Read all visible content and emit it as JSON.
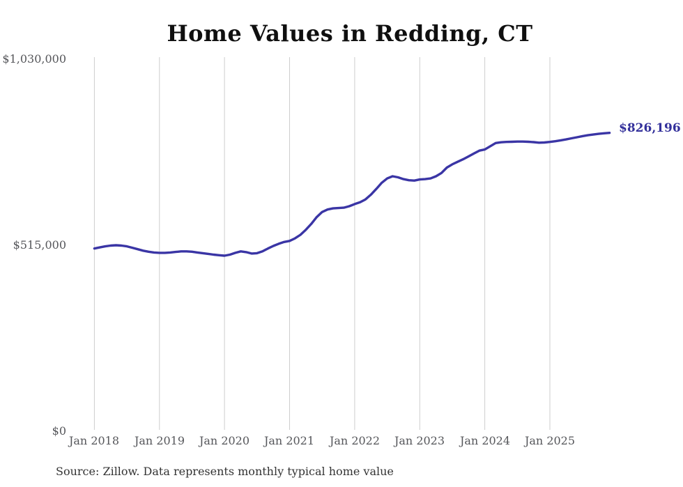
{
  "title": "Home Values in Redding, CT",
  "source_note": "Source: Zillow. Data represents monthly typical home value",
  "annotations": {
    "end_value_label": "$826,196"
  },
  "colors": {
    "line": "#3a35a5",
    "end_label": "#33309b",
    "grid": "#cdcdcd",
    "axis_text": "#55565a",
    "title_text": "#0f0f0f",
    "source_text": "#333333",
    "background": "#ffffff"
  },
  "chart_data": {
    "type": "line",
    "title": "Home Values in Redding, CT",
    "xlabel": "",
    "ylabel": "",
    "x_tick_labels": [
      "Jan 2018",
      "Jan 2019",
      "Jan 2020",
      "Jan 2021",
      "Jan 2022",
      "Jan 2023",
      "Jan 2024",
      "Jan 2025"
    ],
    "y_tick_labels": [
      "$1,030,000",
      "$515,000",
      "$0"
    ],
    "y_ticks": [
      1030000,
      515000,
      0
    ],
    "ylim": [
      0,
      1030000
    ],
    "grid": "vertical gridlines at each January tick",
    "legend": "none",
    "series": [
      {
        "name": "Typical home value (USD)",
        "start_month": "2018-01",
        "frequency": "monthly",
        "last_value": 826196,
        "values": [
          506000,
          509000,
          512000,
          514000,
          515000,
          514000,
          512000,
          508000,
          504000,
          500000,
          497000,
          495000,
          494000,
          494000,
          495000,
          496500,
          498000,
          498000,
          497000,
          495000,
          493000,
          491000,
          489000,
          487500,
          486000,
          489000,
          494000,
          498000,
          496000,
          492000,
          493000,
          498000,
          506000,
          513000,
          519000,
          524000,
          527000,
          534000,
          544000,
          558000,
          574000,
          593000,
          607000,
          614000,
          617000,
          618000,
          619000,
          623000,
          629000,
          634000,
          642000,
          655000,
          671000,
          688000,
          700000,
          706000,
          703000,
          698000,
          695000,
          694000,
          697000,
          698000,
          700000,
          706000,
          715000,
          730000,
          739000,
          746000,
          753000,
          761000,
          769000,
          777000,
          780000,
          789000,
          798000,
          800000,
          801000,
          801500,
          802000,
          802000,
          801500,
          800500,
          799000,
          799500,
          801000,
          803000,
          805500,
          808000,
          811000,
          814000,
          817000,
          819500,
          821500,
          823500,
          825000,
          826196
        ]
      }
    ]
  }
}
